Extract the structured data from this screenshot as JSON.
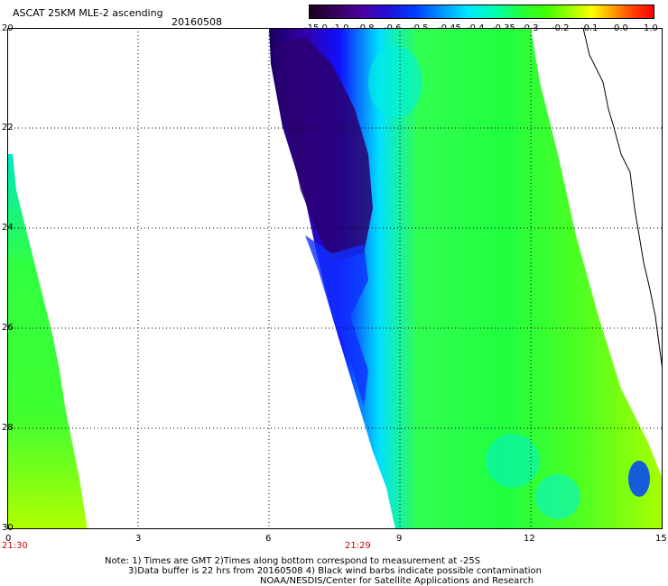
{
  "header": {
    "title": "ASCAT 25KM MLE-2 ascending",
    "date": "20160508"
  },
  "colorbar": {
    "labels": [
      "-15.0",
      "-1.0",
      "-0.8",
      "-0.6",
      "-0.5",
      "-0.45",
      "-0.4",
      "-0.35",
      "-0.3",
      "-0.2",
      "-0.1",
      "0.0",
      "1.0"
    ],
    "colors": [
      "#1a001a",
      "#3a0060",
      "#4b00a0",
      "#2010d8",
      "#0040ff",
      "#0090ff",
      "#00e8ff",
      "#00ffb0",
      "#20ff40",
      "#40ff00",
      "#b0ff00",
      "#ffff00",
      "#ffa000",
      "#ff4000",
      "#ff0000"
    ]
  },
  "map": {
    "y_ticks": [
      "20",
      "22",
      "24",
      "26",
      "28",
      "30"
    ],
    "x_ticks": [
      "0",
      "3",
      "6",
      "9",
      "12",
      "15"
    ],
    "time_labels": [
      "21:30",
      "21:29"
    ]
  },
  "footer": {
    "line1": "Note: 1) Times are GMT 2)Times along bottom correspond to measurement at -25S",
    "line2": "3)Data buffer is 22 hrs from 20160508 4) Black wind barbs indicate possible contamination",
    "line3": "NOAA/NESDIS/Center for Satellite Applications and Research"
  }
}
